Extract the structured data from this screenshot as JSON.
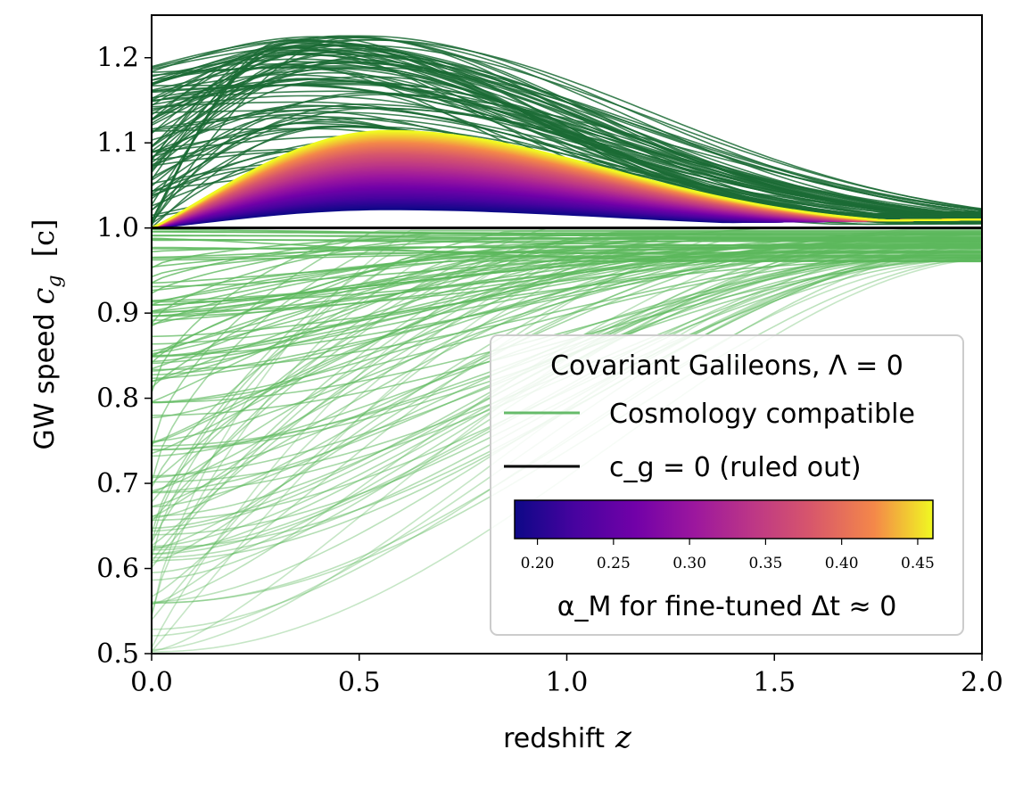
{
  "chart_data": {
    "type": "line",
    "title": "",
    "xlabel": "redshift",
    "xlabel_var": "z",
    "ylabel": "GW speed",
    "ylabel_var": "c_g",
    "ylabel_unit": "[c]",
    "xlim": [
      0.0,
      2.0
    ],
    "ylim": [
      0.5,
      1.25
    ],
    "xticks": [
      "0.0",
      "0.5",
      "1.0",
      "1.5",
      "2.0"
    ],
    "yticks": [
      "0.5",
      "0.6",
      "0.7",
      "0.8",
      "0.9",
      "1.0",
      "1.1",
      "1.2"
    ],
    "grid": false,
    "legend": {
      "placement": "lower-right",
      "title": "Covariant Galileons, Λ = 0",
      "entries": [
        {
          "label": "Cosmology compatible",
          "color": "#66bb6a"
        },
        {
          "label": "c_g = 0 (ruled out)",
          "color": "#000000"
        }
      ]
    },
    "colorbar": {
      "colormap": "plasma",
      "ticks": [
        "0.20",
        "0.25",
        "0.30",
        "0.35",
        "0.40",
        "0.45"
      ],
      "range": [
        0.185,
        0.46
      ],
      "label": "α_M for fine-tuned Δt ≈ 0"
    },
    "reference_line": {
      "y": 1.0,
      "color": "#000000"
    },
    "families": {
      "superluminal": {
        "color": "#1b6b35",
        "count": 90,
        "start_range": [
          1.0,
          1.19
        ],
        "peak_range": [
          1.02,
          1.23
        ],
        "peak_z_range": [
          0.3,
          0.55
        ],
        "end_value_at_z2": [
          1.005,
          1.02
        ]
      },
      "subluminal": {
        "color": "#5cb85c",
        "count": 130,
        "start_range": [
          0.5,
          1.0
        ],
        "end_value_at_z2": [
          0.96,
          1.0
        ]
      },
      "fine_tuned": {
        "alpha_M_range": [
          0.185,
          0.46
        ],
        "peak_z": 0.57,
        "peak_range": [
          1.022,
          1.114
        ],
        "end_value_at_z2": 1.01
      }
    }
  }
}
